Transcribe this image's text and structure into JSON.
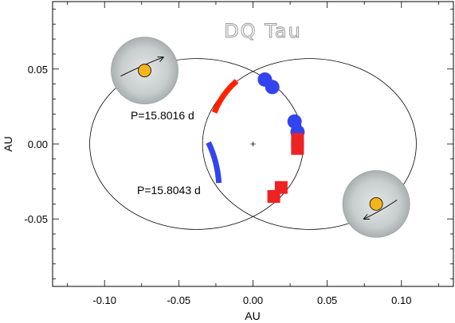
{
  "chart_data": {
    "type": "scatter",
    "title": "DQ Tau",
    "xlabel": "AU",
    "ylabel": "AU",
    "xlim": [
      -0.135,
      0.135
    ],
    "ylim": [
      -0.095,
      0.095
    ],
    "x_ticks": [
      -0.1,
      -0.05,
      0.0,
      0.05,
      0.1
    ],
    "x_tick_labels": [
      "-0.10",
      "-0.05",
      "0.00",
      "0.05",
      "0.10"
    ],
    "y_ticks": [
      -0.05,
      0.0,
      0.05
    ],
    "y_tick_labels": [
      "-0.05",
      "0.00",
      "0.05"
    ],
    "grid": false,
    "orbits": [
      {
        "center": [
          -0.038,
          0.0
        ],
        "semi_axis_x": 0.072,
        "semi_axis_y": 0.057,
        "color": "#000000"
      },
      {
        "center": [
          0.038,
          0.0
        ],
        "semi_axis_x": 0.072,
        "semi_axis_y": 0.057,
        "color": "#000000"
      }
    ],
    "arcs": [
      {
        "label": "P=15.8016 d",
        "color": "#ff2200",
        "from": [
          -0.026,
          0.021
        ],
        "to": [
          -0.011,
          0.042
        ]
      },
      {
        "label": "P=15.8043 d",
        "color": "#3344ee",
        "from": [
          -0.03,
          0.001
        ],
        "to": [
          -0.023,
          -0.026
        ]
      }
    ],
    "series": [
      {
        "marker": "circle",
        "color": "#3344ee",
        "x": [
          0.008,
          0.013,
          0.028,
          0.03
        ],
        "y": [
          0.043,
          0.038,
          0.015,
          0.008
        ]
      },
      {
        "marker": "square",
        "color": "#ee2222",
        "x": [
          0.03,
          0.03,
          0.019,
          0.014
        ],
        "y": [
          0.003,
          -0.003,
          -0.029,
          -0.035
        ]
      }
    ],
    "center_marker": [
      0.0,
      0.0
    ],
    "insets": [
      {
        "position": "top-left",
        "center": [
          -0.073,
          0.049
        ],
        "star_color": "#f5b31c",
        "arrow": "clockwise-top"
      },
      {
        "position": "bottom-right",
        "center": [
          0.083,
          -0.04
        ],
        "star_color": "#f5b31c",
        "arrow": "counterclockwise-bottom"
      }
    ]
  }
}
